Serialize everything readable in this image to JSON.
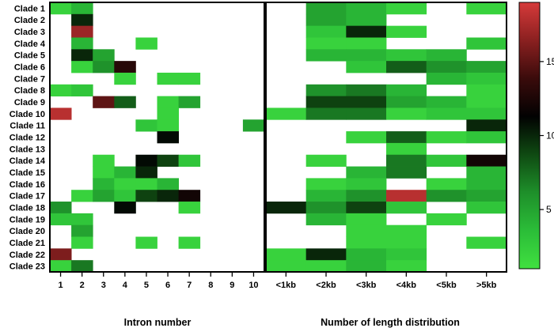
{
  "chart_data": {
    "type": "heatmap",
    "rows": [
      "Clade 1",
      "Clade 2",
      "Clade 3",
      "Clade 4",
      "Clade 5",
      "Clade 6",
      "Clade 7",
      "Clade 8",
      "Clade 9",
      "Clade 10",
      "Clade 11",
      "Clade 12",
      "Clade 13",
      "Clade 14",
      "Clade 15",
      "Clade 16",
      "Clade 17",
      "Clade 18",
      "Clade 19",
      "Clade 20",
      "Clade 21",
      "Clade 22",
      "Clade 23"
    ],
    "panels": [
      {
        "xlabel": "Intron number",
        "columns": [
          "1",
          "2",
          "3",
          "4",
          "5",
          "6",
          "7",
          "8",
          "9",
          "10"
        ],
        "values": [
          [
            2,
            4,
            null,
            null,
            null,
            null,
            null,
            null,
            null,
            null
          ],
          [
            null,
            10,
            null,
            null,
            null,
            null,
            null,
            null,
            null,
            null
          ],
          [
            null,
            17,
            null,
            null,
            null,
            null,
            null,
            null,
            null,
            null
          ],
          [
            null,
            4,
            null,
            null,
            2,
            null,
            null,
            null,
            null,
            null
          ],
          [
            null,
            10,
            5,
            null,
            null,
            null,
            null,
            null,
            null,
            null
          ],
          [
            null,
            2,
            6,
            13,
            null,
            null,
            null,
            null,
            null,
            null
          ],
          [
            null,
            null,
            null,
            2,
            null,
            2,
            2,
            null,
            null,
            null
          ],
          [
            2,
            3,
            null,
            null,
            null,
            null,
            null,
            null,
            null,
            null
          ],
          [
            null,
            null,
            15,
            8,
            null,
            2,
            5,
            null,
            null,
            null
          ],
          [
            18,
            null,
            null,
            null,
            null,
            2,
            null,
            null,
            null,
            null
          ],
          [
            null,
            null,
            null,
            null,
            3,
            2,
            null,
            null,
            null,
            5
          ],
          [
            null,
            null,
            null,
            null,
            null,
            11,
            null,
            null,
            null,
            null
          ],
          [
            null,
            null,
            null,
            null,
            null,
            null,
            null,
            null,
            null,
            null
          ],
          [
            null,
            null,
            2,
            null,
            11,
            9,
            3,
            null,
            null,
            null
          ],
          [
            null,
            null,
            2,
            4,
            10,
            null,
            null,
            null,
            null,
            null
          ],
          [
            null,
            null,
            4,
            2,
            2,
            4,
            null,
            null,
            null,
            null
          ],
          [
            null,
            2,
            5,
            3,
            9,
            10,
            12,
            null,
            null,
            null
          ],
          [
            6,
            null,
            null,
            11,
            null,
            null,
            2,
            null,
            null,
            null
          ],
          [
            3,
            3,
            null,
            null,
            null,
            null,
            null,
            null,
            null,
            null
          ],
          [
            null,
            5,
            null,
            null,
            null,
            null,
            null,
            null,
            null,
            null
          ],
          [
            null,
            2,
            null,
            null,
            2,
            null,
            2,
            null,
            null,
            null
          ],
          [
            16,
            null,
            null,
            null,
            null,
            null,
            null,
            null,
            null,
            null
          ],
          [
            2,
            7,
            null,
            null,
            null,
            null,
            null,
            null,
            null,
            null
          ]
        ]
      },
      {
        "xlabel": "Number of length distribution",
        "columns": [
          "<1kb",
          "<2kb",
          "<3kb",
          "<4kb",
          "<5kb",
          ">5kb"
        ],
        "values": [
          [
            null,
            5,
            4,
            2,
            null,
            2
          ],
          [
            null,
            5,
            4,
            null,
            null,
            null
          ],
          [
            null,
            3,
            10,
            2,
            null,
            null
          ],
          [
            null,
            2,
            2,
            null,
            null,
            3
          ],
          [
            null,
            4,
            4,
            3,
            4,
            null
          ],
          [
            null,
            null,
            3,
            8,
            6,
            5
          ],
          [
            null,
            null,
            null,
            null,
            4,
            3
          ],
          [
            null,
            6,
            7,
            4,
            null,
            2
          ],
          [
            null,
            9,
            9,
            5,
            4,
            2
          ],
          [
            2,
            7,
            7,
            2,
            3,
            3
          ],
          [
            null,
            null,
            null,
            null,
            null,
            10
          ],
          [
            null,
            null,
            2,
            8,
            2,
            3
          ],
          [
            null,
            null,
            null,
            2,
            null,
            null
          ],
          [
            null,
            2,
            null,
            7,
            3,
            12
          ],
          [
            null,
            null,
            4,
            7,
            null,
            4
          ],
          [
            null,
            2,
            3,
            null,
            2,
            4
          ],
          [
            null,
            4,
            6,
            18,
            6,
            5
          ],
          [
            10,
            6,
            9,
            3,
            null,
            3
          ],
          [
            null,
            4,
            2,
            null,
            2,
            null
          ],
          [
            null,
            null,
            2,
            2,
            null,
            null
          ],
          [
            null,
            null,
            2,
            2,
            null,
            2
          ],
          [
            2,
            10,
            4,
            3,
            null,
            null
          ],
          [
            2,
            2,
            4,
            2,
            null,
            null
          ]
        ]
      }
    ],
    "colorbar": {
      "range": [
        1,
        19
      ],
      "ticks": [
        5,
        10,
        15
      ]
    },
    "colorscale": [
      "#40e040",
      "#2bbd38",
      "#1e8f2a",
      "#0f4a12",
      "#020202",
      "#3a0b0b",
      "#8a2020",
      "#d63a3a"
    ],
    "grid": false
  }
}
